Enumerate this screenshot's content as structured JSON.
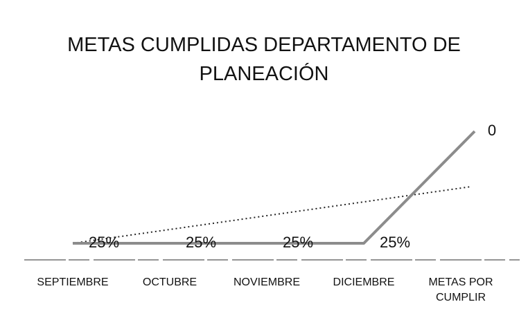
{
  "chart_data": {
    "type": "line",
    "title": "METAS CUMPLIDAS DEPARTAMENTO DE PLANEACIÓN",
    "categories": [
      "SEPTIEMBRE",
      "OCTUBRE",
      "NOVIEMBRE",
      "DICIEMBRE",
      "METAS POR CUMPLIR"
    ],
    "values": [
      25,
      25,
      25,
      25,
      0
    ],
    "value_labels": [
      "25%",
      "25%",
      "25%",
      "25%",
      "0"
    ],
    "color": "#8c8c8c",
    "ylim": [
      25,
      0
    ]
  }
}
